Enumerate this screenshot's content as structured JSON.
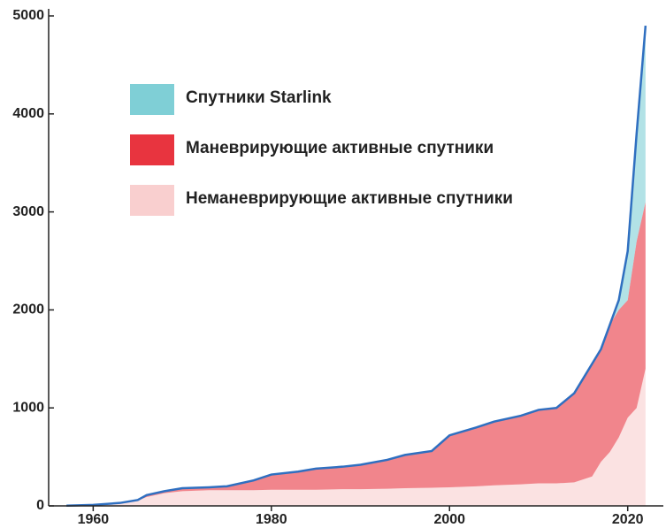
{
  "chart_data": {
    "type": "stacked_area",
    "x": [
      1957,
      1960,
      1963,
      1965,
      1966,
      1968,
      1970,
      1973,
      1975,
      1978,
      1980,
      1983,
      1985,
      1988,
      1990,
      1993,
      1995,
      1998,
      2000,
      2003,
      2005,
      2008,
      2010,
      2012,
      2014,
      2016,
      2017,
      2018,
      2019,
      2020,
      2021,
      2022
    ],
    "series": [
      {
        "name": "Неманеврирующие активные спутники",
        "color": "#f9cfcf",
        "values": [
          2,
          10,
          30,
          55,
          90,
          130,
          150,
          160,
          160,
          160,
          165,
          165,
          165,
          170,
          170,
          175,
          180,
          185,
          190,
          200,
          210,
          220,
          230,
          230,
          240,
          300,
          450,
          550,
          700,
          900,
          1000,
          1400
        ]
      },
      {
        "name": "Маневрирующие активные спутники",
        "color": "#e8343f",
        "values": [
          0,
          0,
          0,
          5,
          20,
          20,
          30,
          30,
          40,
          100,
          155,
          185,
          215,
          230,
          250,
          295,
          340,
          375,
          530,
          600,
          650,
          700,
          750,
          770,
          910,
          1150,
          1150,
          1300,
          1300,
          1200,
          1700,
          1700
        ]
      },
      {
        "name": "Спутники Starlink",
        "color": "#7fcfd6",
        "values": [
          0,
          0,
          0,
          0,
          0,
          0,
          0,
          0,
          0,
          0,
          0,
          0,
          0,
          0,
          0,
          0,
          0,
          0,
          0,
          0,
          0,
          0,
          0,
          0,
          0,
          0,
          0,
          0,
          100,
          500,
          1100,
          1800
        ]
      }
    ],
    "xlim": [
      1955,
      2024
    ],
    "xticks": [
      1960,
      1980,
      2000,
      2020
    ],
    "ylim": [
      0,
      5000
    ],
    "yticks": [
      0,
      1000,
      2000,
      3000,
      4000,
      5000
    ],
    "legend": "top-left"
  }
}
